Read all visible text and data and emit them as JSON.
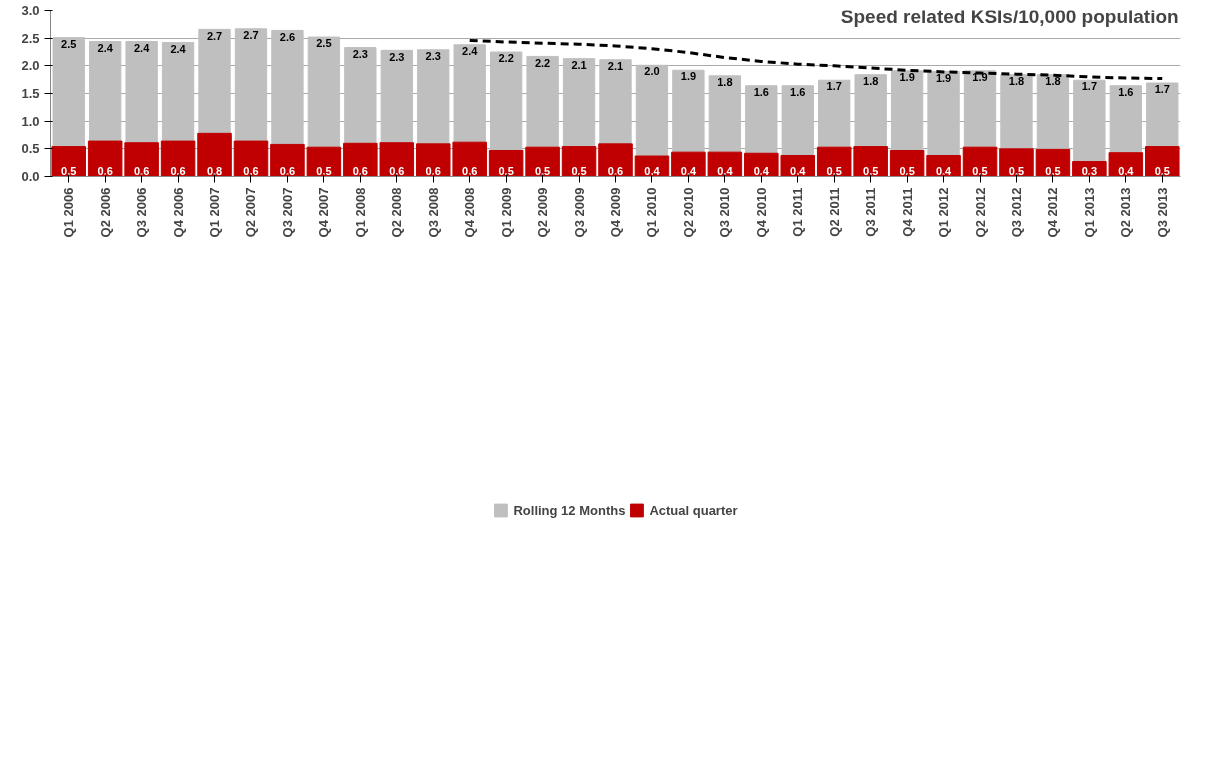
{
  "chart_data": {
    "type": "bar",
    "title": "Speed related KSIs/10,000 population",
    "categories": [
      "Q1 2006",
      "Q2 2006",
      "Q3 2006",
      "Q4 2006",
      "Q1 2007",
      "Q2 2007",
      "Q3 2007",
      "Q4 2007",
      "Q1 2008",
      "Q2 2008",
      "Q3 2008",
      "Q4 2008",
      "Q1 2009",
      "Q2 2009",
      "Q3 2009",
      "Q4 2009",
      "Q1 2010",
      "Q2 2010",
      "Q3 2010",
      "Q4 2010",
      "Q1 2011",
      "Q2 2011",
      "Q3 2011",
      "Q4 2011",
      "Q1 2012",
      "Q2 2012",
      "Q3 2012",
      "Q4 2012",
      "Q1 2013",
      "Q2 2013",
      "Q3 2013"
    ],
    "series": [
      {
        "name": "Rolling 12 Months",
        "color": "#bfbfbf",
        "values": [
          2.51,
          2.44,
          2.44,
          2.42,
          2.66,
          2.67,
          2.64,
          2.52,
          2.33,
          2.28,
          2.29,
          2.38,
          2.25,
          2.17,
          2.13,
          2.11,
          2.01,
          1.92,
          1.82,
          1.64,
          1.64,
          1.74,
          1.84,
          1.91,
          1.9,
          1.91,
          1.84,
          1.84,
          1.74,
          1.64,
          1.69
        ],
        "value_labels": [
          "2.5",
          "2.4",
          "2.4",
          "2.4",
          "2.7",
          "2.7",
          "2.6",
          "2.5",
          "2.3",
          "2.3",
          "2.3",
          "2.4",
          "2.2",
          "2.2",
          "2.1",
          "2.1",
          "2.0",
          "1.9",
          "1.8",
          "1.6",
          "1.6",
          "1.7",
          "1.8",
          "1.9",
          "1.9",
          "1.9",
          "1.8",
          "1.8",
          "1.7",
          "1.6",
          "1.7"
        ]
      },
      {
        "name": "Actual quarter",
        "color": "#c00000",
        "values": [
          0.54,
          0.64,
          0.61,
          0.64,
          0.78,
          0.64,
          0.58,
          0.53,
          0.6,
          0.61,
          0.59,
          0.62,
          0.47,
          0.53,
          0.54,
          0.59,
          0.37,
          0.44,
          0.44,
          0.42,
          0.38,
          0.53,
          0.54,
          0.47,
          0.38,
          0.53,
          0.5,
          0.49,
          0.27,
          0.43,
          0.54
        ],
        "value_labels": [
          "0.5",
          "0.6",
          "0.6",
          "0.6",
          "0.8",
          "0.6",
          "0.6",
          "0.5",
          "0.6",
          "0.6",
          "0.6",
          "0.6",
          "0.5",
          "0.5",
          "0.5",
          "0.6",
          "0.4",
          "0.4",
          "0.4",
          "0.4",
          "0.4",
          "0.5",
          "0.5",
          "0.5",
          "0.4",
          "0.5",
          "0.5",
          "0.5",
          "0.3",
          "0.4",
          "0.5"
        ]
      },
      {
        "type": "line",
        "color": "#000000",
        "line_style": "dashed",
        "marker": "none",
        "values": [
          null,
          null,
          null,
          null,
          null,
          null,
          null,
          null,
          null,
          null,
          null,
          2.46,
          2.43,
          2.41,
          2.39,
          2.36,
          2.31,
          2.24,
          2.15,
          2.08,
          2.03,
          2.0,
          1.96,
          1.92,
          1.89,
          1.87,
          1.85,
          1.83,
          1.8,
          1.78,
          1.77
        ]
      }
    ],
    "ylim": [
      0,
      3.0
    ],
    "yticks": [
      {
        "value": 0,
        "label": "0.0"
      },
      {
        "value": 0.5,
        "label": "0.5"
      },
      {
        "value": 1.0,
        "label": "1.0"
      },
      {
        "value": 1.5,
        "label": "1.5"
      },
      {
        "value": 2.0,
        "label": "2.0"
      },
      {
        "value": 2.5,
        "label": "2.5"
      },
      {
        "value": 3.0,
        "label": "3.0"
      }
    ],
    "grid": "y",
    "legend": "bottom"
  }
}
